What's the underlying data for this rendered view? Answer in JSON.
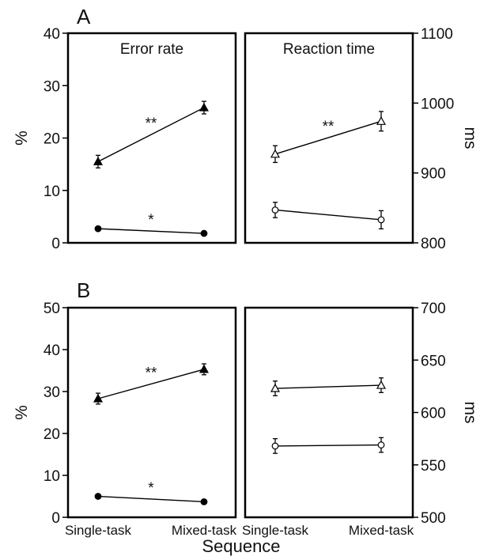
{
  "figure": {
    "x_axis_label": "Sequence",
    "x_categories": [
      "Single-task",
      "Mixed-task"
    ]
  },
  "chart_data": [
    {
      "type": "line",
      "panel": "A",
      "title": "Error rate",
      "ylabel": "%",
      "ylim": [
        0,
        40
      ],
      "yticks": [
        0,
        10,
        20,
        30,
        40
      ],
      "categories": [
        "Single-task",
        "Mixed-task"
      ],
      "series": [
        {
          "marker": "filled-triangle",
          "values": [
            15.5,
            25.8
          ],
          "errors": [
            1.2,
            1.2
          ],
          "significance": "**"
        },
        {
          "marker": "filled-circle",
          "values": [
            2.7,
            1.8
          ],
          "errors": [
            0.3,
            0.3
          ],
          "significance": "*"
        }
      ]
    },
    {
      "type": "line",
      "panel": "A",
      "title": "Reaction time",
      "ylabel": "ms",
      "ylim": [
        800,
        1100
      ],
      "yticks": [
        800,
        900,
        1000,
        1100
      ],
      "categories": [
        "Single-task",
        "Mixed-task"
      ],
      "series": [
        {
          "marker": "open-triangle",
          "values": [
            927,
            974
          ],
          "errors": [
            12,
            14
          ],
          "significance": "**"
        },
        {
          "marker": "open-circle",
          "values": [
            847,
            833
          ],
          "errors": [
            11,
            13
          ],
          "significance": ""
        }
      ]
    },
    {
      "type": "line",
      "panel": "B",
      "title": "",
      "ylabel": "%",
      "ylim": [
        0,
        50
      ],
      "yticks": [
        0,
        10,
        20,
        30,
        40,
        50
      ],
      "categories": [
        "Single-task",
        "Mixed-task"
      ],
      "series": [
        {
          "marker": "filled-triangle",
          "values": [
            28.3,
            35.3
          ],
          "errors": [
            1.3,
            1.3
          ],
          "significance": "**"
        },
        {
          "marker": "filled-circle",
          "values": [
            5.0,
            3.7
          ],
          "errors": [
            0.3,
            0.3
          ],
          "significance": "*"
        }
      ]
    },
    {
      "type": "line",
      "panel": "B",
      "title": "",
      "ylabel": "ms",
      "ylim": [
        500,
        700
      ],
      "yticks": [
        500,
        550,
        600,
        650,
        700
      ],
      "categories": [
        "Single-task",
        "Mixed-task"
      ],
      "series": [
        {
          "marker": "open-triangle",
          "values": [
            623,
            626
          ],
          "errors": [
            7,
            7
          ],
          "significance": ""
        },
        {
          "marker": "open-circle",
          "values": [
            568,
            569
          ],
          "errors": [
            7,
            7
          ],
          "significance": ""
        }
      ]
    }
  ]
}
